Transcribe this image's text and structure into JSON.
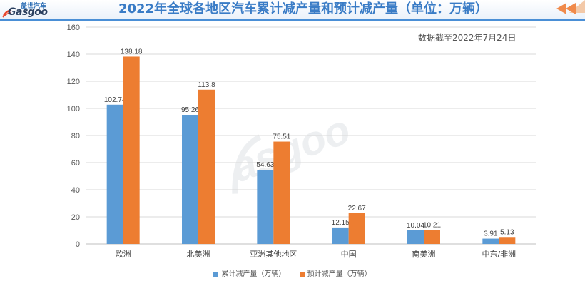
{
  "title": "2022年全球各地区汽车累计减产量和预计减产量（单位：万辆）",
  "note": "数据截至2022年7月24日",
  "logo": {
    "text_cn": "盖世汽车",
    "text_en": "Gasgoo"
  },
  "colors": {
    "series_1": "#5b9bd5",
    "series_2": "#ed7d31",
    "title": "#3a7cc6",
    "accent": "#f08a4b"
  },
  "icons": {
    "corner": "double-chevron-left-icon"
  },
  "chart_data": {
    "type": "bar",
    "categories": [
      "欧洲",
      "北美洲",
      "亚洲其他地区",
      "中国",
      "南美洲",
      "中东/非洲"
    ],
    "series": [
      {
        "name": "累计减产量（万辆）",
        "values": [
          102.74,
          95.26,
          54.63,
          12.15,
          10.04,
          3.91
        ],
        "labels": [
          "102.74",
          "95.26",
          "54.63",
          "12.15",
          "10.04",
          "3.91"
        ]
      },
      {
        "name": "预计减产量（万辆）",
        "values": [
          138.18,
          113.8,
          75.51,
          22.67,
          10.21,
          5.13
        ],
        "labels": [
          "138.18",
          "113.8",
          "75.51",
          "22.67",
          "10.21",
          "5.13"
        ]
      }
    ],
    "ylim": [
      0,
      160
    ],
    "yticks": [
      0,
      20,
      40,
      60,
      80,
      100,
      120,
      140,
      160
    ],
    "grid": true,
    "legend": "bottom"
  }
}
